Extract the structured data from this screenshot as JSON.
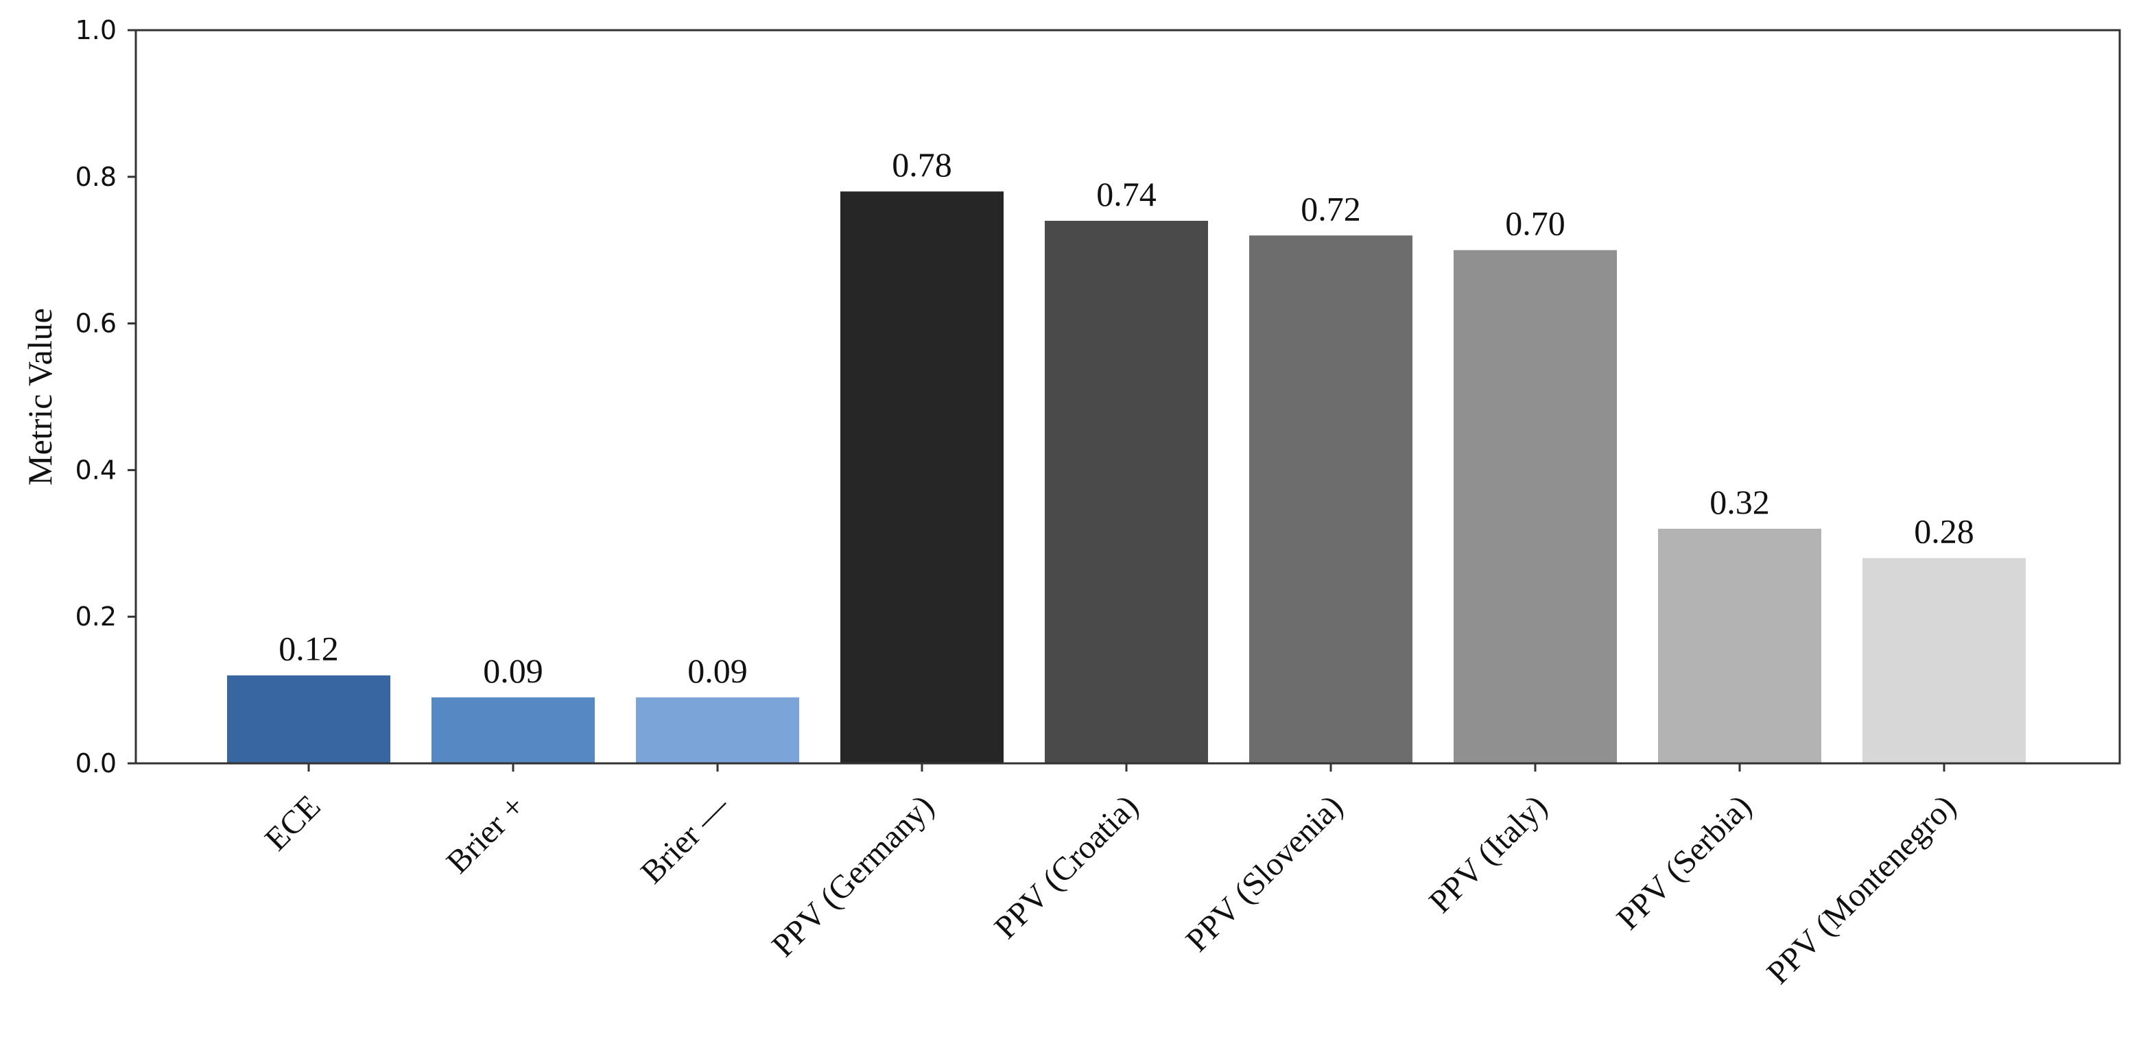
{
  "chart_data": {
    "type": "bar",
    "categories": [
      "ECE",
      "Brier +",
      "Brier —",
      "PPV (Germany)",
      "PPV (Croatia)",
      "PPV (Slovenia)",
      "PPV (Italy)",
      "PPV (Serbia)",
      "PPV (Montenegro)"
    ],
    "values": [
      0.12,
      0.09,
      0.09,
      0.78,
      0.74,
      0.72,
      0.7,
      0.32,
      0.28
    ],
    "value_labels": [
      "0.12",
      "0.09",
      "0.09",
      "0.78",
      "0.74",
      "0.72",
      "0.70",
      "0.32",
      "0.28"
    ],
    "colors": [
      "#3866a0",
      "#5688c4",
      "#7ba4d8",
      "#262626",
      "#4a4a4a",
      "#6d6d6d",
      "#909090",
      "#b3b3b3",
      "#d7d7d7"
    ],
    "title": "",
    "xlabel": "",
    "ylabel": "Metric Value",
    "ylim": [
      0,
      1.0
    ],
    "yticks": [
      0.0,
      0.2,
      0.4,
      0.6,
      0.8,
      1.0
    ],
    "ytick_labels": [
      "0.0",
      "0.2",
      "0.4",
      "0.6",
      "0.8",
      "1.0"
    ],
    "grid": false,
    "legend": "none"
  }
}
